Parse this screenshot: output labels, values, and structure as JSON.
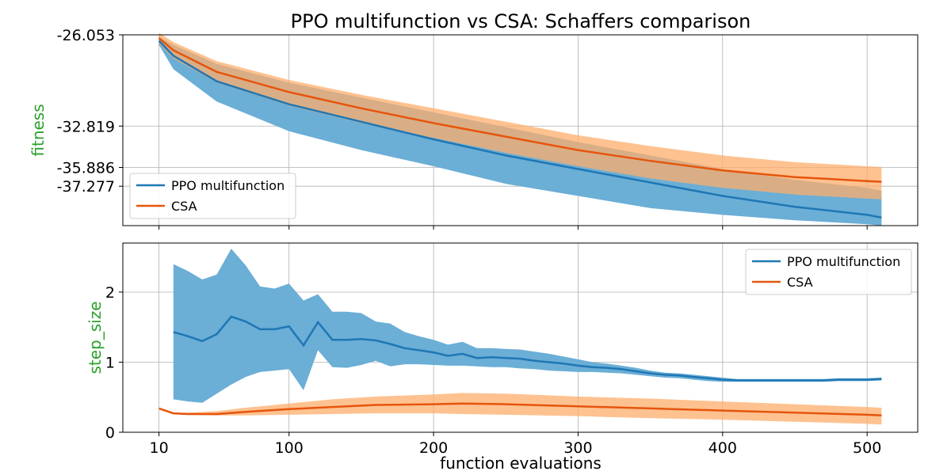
{
  "colors": {
    "ppo": "#1f77b4",
    "ppo_band": "#6baed6",
    "csa": "#e6550d",
    "csa_band": "#fdae6b",
    "ylabel": "#2ca02c"
  },
  "chart_data": [
    {
      "type": "line",
      "title": "PPO multifunction vs CSA: Schaffers comparison",
      "ylabel": "fitness",
      "xlabel": "",
      "xlim": [
        10,
        510
      ],
      "ylim": [
        -40.2,
        -26.053
      ],
      "xticks": [
        10,
        100,
        200,
        300,
        400,
        500
      ],
      "yticks": [
        -26.053,
        -32.819,
        -35.886,
        -37.277
      ],
      "ytick_labels": [
        "-26.053",
        "-32.819",
        "-35.886",
        "-37.277"
      ],
      "grid": true,
      "legend": "lower-left",
      "series": [
        {
          "name": "PPO multifunction",
          "color": "ppo",
          "x": [
            10,
            20,
            50,
            100,
            150,
            200,
            250,
            300,
            350,
            400,
            450,
            500,
            510
          ],
          "y": [
            -26.5,
            -27.6,
            -29.5,
            -31.2,
            -32.5,
            -33.8,
            -35.0,
            -36.0,
            -37.0,
            -38.0,
            -38.8,
            -39.4,
            -39.6
          ],
          "lower": [
            -26.8,
            -28.6,
            -31.0,
            -33.2,
            -34.6,
            -35.8,
            -37.1,
            -38.0,
            -38.9,
            -39.4,
            -39.8,
            -40.1,
            -40.2
          ],
          "upper": [
            -26.2,
            -26.8,
            -28.2,
            -29.6,
            -30.7,
            -31.8,
            -32.9,
            -34.0,
            -35.0,
            -36.0,
            -36.8,
            -37.4,
            -37.6
          ]
        },
        {
          "name": "CSA",
          "color": "csa",
          "x": [
            10,
            20,
            50,
            100,
            150,
            200,
            250,
            300,
            350,
            400,
            450,
            500,
            510
          ],
          "y": [
            -26.3,
            -27.2,
            -28.8,
            -30.3,
            -31.5,
            -32.6,
            -33.6,
            -34.6,
            -35.4,
            -36.1,
            -36.6,
            -36.9,
            -36.95
          ],
          "lower": [
            -26.7,
            -27.8,
            -29.6,
            -31.3,
            -32.6,
            -33.7,
            -34.8,
            -35.8,
            -36.7,
            -37.4,
            -37.9,
            -38.2,
            -38.25
          ],
          "upper": [
            -25.9,
            -26.6,
            -28.0,
            -29.4,
            -30.5,
            -31.5,
            -32.5,
            -33.5,
            -34.3,
            -35.0,
            -35.5,
            -35.8,
            -35.85
          ]
        }
      ]
    },
    {
      "type": "line",
      "title": "",
      "ylabel": "step_size",
      "xlabel": "function evaluations",
      "xlim": [
        10,
        510
      ],
      "ylim": [
        0,
        2.7
      ],
      "xticks": [
        10,
        100,
        200,
        300,
        400,
        500
      ],
      "yticks": [
        0,
        1,
        2
      ],
      "grid": true,
      "legend": "upper-right",
      "series": [
        {
          "name": "PPO multifunction",
          "color": "ppo",
          "x": [
            20,
            30,
            40,
            50,
            60,
            70,
            80,
            90,
            100,
            110,
            120,
            130,
            140,
            150,
            160,
            170,
            180,
            190,
            200,
            210,
            220,
            230,
            240,
            250,
            260,
            270,
            280,
            290,
            300,
            310,
            320,
            330,
            340,
            350,
            360,
            370,
            380,
            390,
            400,
            410,
            420,
            430,
            440,
            450,
            460,
            470,
            480,
            490,
            500,
            510
          ],
          "y": [
            1.43,
            1.37,
            1.3,
            1.4,
            1.65,
            1.58,
            1.47,
            1.47,
            1.51,
            1.24,
            1.57,
            1.32,
            1.32,
            1.33,
            1.31,
            1.26,
            1.2,
            1.17,
            1.14,
            1.09,
            1.12,
            1.06,
            1.07,
            1.06,
            1.05,
            1.02,
            1.0,
            0.98,
            0.95,
            0.93,
            0.92,
            0.9,
            0.87,
            0.84,
            0.82,
            0.81,
            0.79,
            0.77,
            0.75,
            0.74,
            0.74,
            0.74,
            0.74,
            0.74,
            0.74,
            0.74,
            0.75,
            0.75,
            0.75,
            0.76
          ],
          "lower": [
            0.47,
            0.44,
            0.42,
            0.55,
            0.68,
            0.79,
            0.86,
            0.88,
            0.9,
            0.6,
            1.17,
            0.93,
            0.92,
            0.96,
            1.02,
            0.94,
            0.97,
            0.97,
            0.96,
            0.95,
            0.95,
            0.94,
            0.93,
            0.93,
            0.91,
            0.9,
            0.88,
            0.87,
            0.86,
            0.86,
            0.85,
            0.84,
            0.82,
            0.8,
            0.78,
            0.77,
            0.75,
            0.73,
            0.72,
            0.72,
            0.72,
            0.72,
            0.72,
            0.72,
            0.72,
            0.72,
            0.73,
            0.73,
            0.73,
            0.74
          ],
          "upper": [
            2.4,
            2.3,
            2.18,
            2.25,
            2.62,
            2.38,
            2.08,
            2.05,
            2.12,
            1.88,
            1.97,
            1.72,
            1.72,
            1.7,
            1.58,
            1.55,
            1.43,
            1.37,
            1.32,
            1.25,
            1.29,
            1.2,
            1.2,
            1.19,
            1.18,
            1.15,
            1.12,
            1.08,
            1.04,
            1.0,
            0.98,
            0.95,
            0.92,
            0.88,
            0.85,
            0.84,
            0.82,
            0.8,
            0.78,
            0.76,
            0.76,
            0.76,
            0.76,
            0.76,
            0.76,
            0.76,
            0.77,
            0.77,
            0.77,
            0.78
          ]
        },
        {
          "name": "CSA",
          "color": "csa",
          "x": [
            10,
            20,
            30,
            50,
            70,
            100,
            130,
            160,
            200,
            220,
            250,
            300,
            350,
            400,
            450,
            500,
            510
          ],
          "y": [
            0.34,
            0.27,
            0.26,
            0.26,
            0.29,
            0.33,
            0.36,
            0.39,
            0.4,
            0.41,
            0.4,
            0.37,
            0.34,
            0.31,
            0.28,
            0.25,
            0.24
          ],
          "lower": [
            0.34,
            0.26,
            0.25,
            0.24,
            0.24,
            0.25,
            0.26,
            0.27,
            0.27,
            0.26,
            0.25,
            0.23,
            0.2,
            0.18,
            0.15,
            0.12,
            0.11
          ],
          "upper": [
            0.34,
            0.28,
            0.28,
            0.3,
            0.35,
            0.41,
            0.47,
            0.51,
            0.54,
            0.56,
            0.55,
            0.51,
            0.48,
            0.44,
            0.4,
            0.36,
            0.35
          ]
        }
      ]
    }
  ]
}
